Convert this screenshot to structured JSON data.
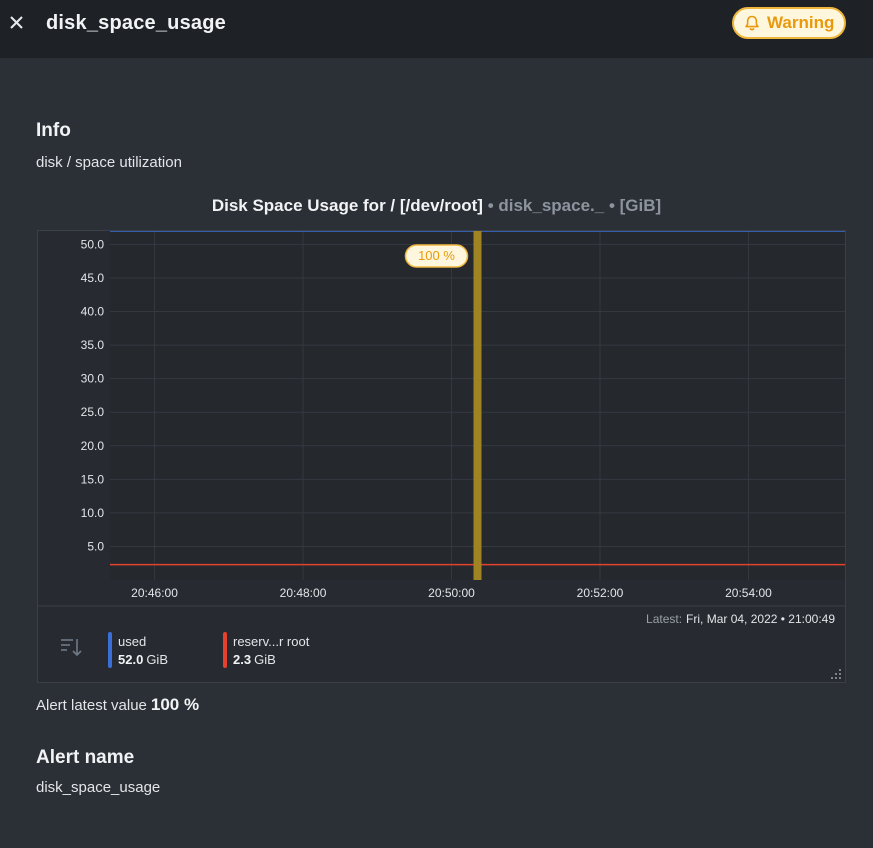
{
  "header": {
    "title": "disk_space_usage",
    "status_label": "Warning",
    "status_icon": "bell-icon",
    "close_icon": "close-icon"
  },
  "info": {
    "heading": "Info",
    "description": "disk / space utilization"
  },
  "chart": {
    "title_main": "Disk Space Usage for / [/dev/root]",
    "title_context": " • disk_space._ • [GiB]",
    "latest_label": "Latest:",
    "latest_value": "Fri, Mar 04, 2022 • 21:00:49",
    "alert_marker_label": "100 %"
  },
  "chart_data": {
    "type": "area",
    "title": "Disk Space Usage for / [/dev/root]",
    "units": "GiB",
    "y_ticks": [
      "50.0",
      "45.0",
      "40.0",
      "35.0",
      "30.0",
      "25.0",
      "20.0",
      "15.0",
      "10.0",
      "5.0"
    ],
    "ylim": [
      0,
      52.0
    ],
    "x_ticks": [
      "20:46:00",
      "20:48:00",
      "20:50:00",
      "20:52:00",
      "20:54:00"
    ],
    "x_tick_minutes": [
      0,
      2,
      4,
      6,
      8
    ],
    "xlim_minutes": [
      -0.6,
      9.3
    ],
    "alert_time_minutes": 4.35,
    "series": [
      {
        "name": "used",
        "value": 52.0,
        "color": "#3a6fd8"
      },
      {
        "name": "reserv...r root",
        "value": 2.3,
        "color": "#e5412d"
      }
    ],
    "grid": true,
    "alert_band_color": "#a08424"
  },
  "legend": {
    "items": [
      {
        "name": "used",
        "value": "52.0",
        "unit": "GiB",
        "color": "#3a6fd8"
      },
      {
        "name": "reserv...r root",
        "value": "2.3",
        "unit": "GiB",
        "color": "#e5412d"
      }
    ]
  },
  "alert_value": {
    "label": "Alert latest value",
    "value": "100 %"
  },
  "alert_name": {
    "heading": "Alert name",
    "value": "disk_space_usage"
  }
}
